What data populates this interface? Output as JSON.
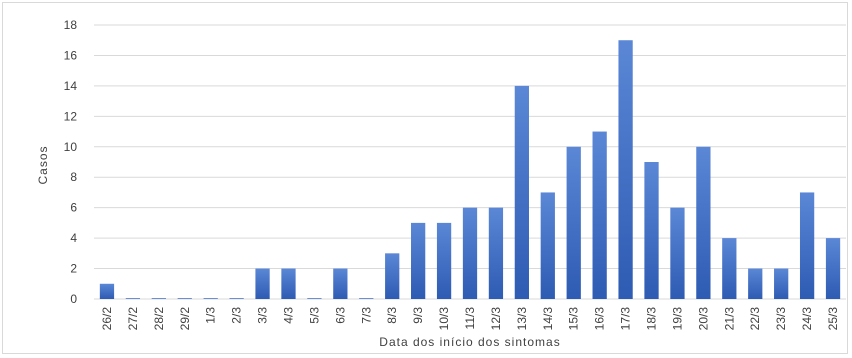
{
  "chart_data": {
    "type": "bar",
    "title": "",
    "xlabel": "Data dos início dos sintomas",
    "ylabel": "Casos",
    "ylim": [
      0,
      18
    ],
    "yticks": [
      0,
      2,
      4,
      6,
      8,
      10,
      12,
      14,
      16,
      18
    ],
    "grid": true,
    "legend": "none",
    "bar_color_top": "#5b87d6",
    "bar_color_bottom": "#2e5bb3",
    "categories": [
      "26/2",
      "27/2",
      "28/2",
      "29/2",
      "1/3",
      "2/3",
      "3/3",
      "4/3",
      "5/3",
      "6/3",
      "7/3",
      "8/3",
      "9/3",
      "10/3",
      "11/3",
      "12/3",
      "13/3",
      "14/3",
      "15/3",
      "16/3",
      "17/3",
      "18/3",
      "19/3",
      "20/3",
      "21/3",
      "22/3",
      "23/3",
      "24/3",
      "25/3"
    ],
    "values": [
      1,
      0,
      0,
      0,
      0,
      0,
      2,
      2,
      0,
      2,
      0,
      3,
      5,
      5,
      6,
      6,
      14,
      7,
      10,
      11,
      17,
      9,
      6,
      10,
      4,
      2,
      2,
      7,
      4
    ]
  }
}
